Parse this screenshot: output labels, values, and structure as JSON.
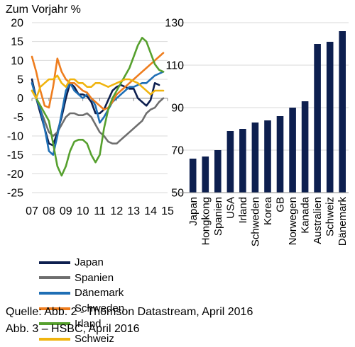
{
  "chart_data": [
    {
      "type": "line",
      "title": "Zum Vorjahr %",
      "xlabel": "",
      "ylabel": "",
      "ylim": [
        -25,
        20
      ],
      "yticks": [
        20,
        15,
        10,
        5,
        0,
        -5,
        -10,
        -15,
        -20,
        -25
      ],
      "xlim": [
        2007,
        2015
      ],
      "xticks": [
        "07",
        "08",
        "09",
        "10",
        "11",
        "12",
        "13",
        "14",
        "15"
      ],
      "grid": "horizontal",
      "legend_position": "below",
      "series": [
        {
          "name": "Japan",
          "color": "#0d1f4f",
          "x": [
            2007.0,
            2007.25,
            2007.5,
            2007.75,
            2008.0,
            2008.25,
            2008.5,
            2008.75,
            2009.0,
            2009.25,
            2009.5,
            2009.75,
            2010.0,
            2010.25,
            2010.5,
            2010.75,
            2011.0,
            2011.25,
            2011.5,
            2011.75,
            2012.0,
            2012.25,
            2012.5,
            2012.75,
            2013.0,
            2013.25,
            2013.5,
            2013.75,
            2014.0,
            2014.25,
            2014.5
          ],
          "y": [
            5,
            0,
            -4,
            -8,
            -12,
            -12.5,
            -9,
            -5,
            0,
            4,
            3,
            1,
            1,
            0.5,
            -1,
            -4,
            -4,
            -3,
            -0.5,
            2,
            3,
            3.5,
            3,
            2.5,
            2.5,
            0,
            -1,
            -2,
            -0.5,
            4,
            3.5
          ]
        },
        {
          "name": "Spanien",
          "color": "#6e6e6e",
          "x": [
            2007.0,
            2007.25,
            2007.5,
            2007.75,
            2008.0,
            2008.25,
            2008.5,
            2008.75,
            2009.0,
            2009.25,
            2009.5,
            2009.75,
            2010.0,
            2010.25,
            2010.5,
            2010.75,
            2011.0,
            2011.25,
            2011.5,
            2011.75,
            2012.0,
            2012.25,
            2012.5,
            2012.75,
            2013.0,
            2013.25,
            2013.5,
            2013.75,
            2014.0,
            2014.25,
            2014.5,
            2014.75
          ],
          "y": [
            4,
            0,
            -3,
            -6,
            -9,
            -10,
            -9,
            -7,
            -5,
            -4,
            -4,
            -4.5,
            -4.5,
            -4,
            -5,
            -7,
            -9,
            -10,
            -11.5,
            -12,
            -12,
            -11,
            -10,
            -9,
            -8,
            -7,
            -6,
            -4,
            -3,
            -2.5,
            -1,
            0
          ]
        },
        {
          "name": "Dänemark",
          "color": "#1f6fb5",
          "x": [
            2007.0,
            2007.25,
            2007.5,
            2007.75,
            2008.0,
            2008.25,
            2008.5,
            2008.75,
            2009.0,
            2009.25,
            2009.5,
            2009.75,
            2010.0,
            2010.25,
            2010.5,
            2010.75,
            2011.0,
            2011.25,
            2011.5,
            2011.75,
            2012.0,
            2012.25,
            2012.5,
            2012.75,
            2013.0,
            2013.25,
            2013.5,
            2013.75,
            2014.0,
            2014.25,
            2014.5,
            2014.75
          ],
          "y": [
            4,
            0,
            -3,
            -8,
            -14,
            -15,
            -10,
            -4,
            2,
            4,
            2,
            1,
            0,
            1,
            0,
            -2,
            -6.5,
            -5,
            -3,
            -1,
            0,
            1,
            2,
            3,
            3,
            3.5,
            4,
            4,
            5,
            6,
            6.5,
            7
          ]
        },
        {
          "name": "Schweden",
          "color": "#ee7d1e",
          "x": [
            2007.0,
            2007.25,
            2007.5,
            2007.75,
            2008.0,
            2008.25,
            2008.5,
            2008.75,
            2009.0,
            2009.25,
            2009.5,
            2009.75,
            2010.0,
            2010.25,
            2010.5,
            2010.75,
            2011.0,
            2011.25,
            2011.5,
            2011.75,
            2012.0,
            2012.25,
            2012.5,
            2012.75,
            2013.0,
            2013.25,
            2013.5,
            2013.75,
            2014.0,
            2014.25,
            2014.5,
            2014.75
          ],
          "y": [
            11,
            7,
            2,
            -2,
            -2.5,
            3,
            10.5,
            7,
            5,
            4,
            4,
            3,
            2,
            1.5,
            0,
            -1,
            -2,
            -3,
            -2.5,
            -1,
            1,
            2,
            3,
            4,
            5,
            6,
            7,
            8,
            9,
            10,
            11,
            12
          ]
        },
        {
          "name": "Irland",
          "color": "#56a02e",
          "x": [
            2007.0,
            2007.25,
            2007.5,
            2007.75,
            2008.0,
            2008.25,
            2008.5,
            2008.75,
            2009.0,
            2009.25,
            2009.5,
            2009.75,
            2010.0,
            2010.25,
            2010.5,
            2010.75,
            2011.0,
            2011.25,
            2011.5,
            2011.75,
            2012.0,
            2012.25,
            2012.5,
            2012.75,
            2013.0,
            2013.25,
            2013.5,
            2013.75,
            2014.0,
            2014.25,
            2014.5,
            2014.75
          ],
          "y": [
            2,
            0,
            -2,
            -4,
            -6,
            -12,
            -18,
            -20.5,
            -18,
            -14,
            -11.5,
            -11,
            -11,
            -12,
            -15,
            -17,
            -15,
            -8,
            -3,
            0,
            2,
            4,
            6,
            8,
            11,
            14,
            16,
            15,
            12,
            9,
            7.5,
            7
          ]
        },
        {
          "name": "Schweiz",
          "color": "#f0b40f",
          "x": [
            2007.0,
            2007.25,
            2007.5,
            2007.75,
            2008.0,
            2008.25,
            2008.5,
            2008.75,
            2009.0,
            2009.25,
            2009.5,
            2009.75,
            2010.0,
            2010.25,
            2010.5,
            2010.75,
            2011.0,
            2011.25,
            2011.5,
            2011.75,
            2012.0,
            2012.25,
            2012.5,
            2012.75,
            2013.0,
            2013.25,
            2013.5,
            2013.75,
            2014.0,
            2014.25,
            2014.5,
            2014.75
          ],
          "y": [
            2,
            0,
            3,
            4,
            5,
            5,
            6,
            4,
            3,
            5,
            5,
            4,
            4,
            3,
            3,
            4,
            4,
            3.5,
            3,
            3.5,
            4,
            4.5,
            5,
            5,
            4.5,
            4,
            3,
            2,
            1,
            2,
            2,
            2
          ]
        }
      ]
    },
    {
      "type": "bar",
      "title": "",
      "xlabel": "",
      "ylabel": "",
      "ylim": [
        50,
        130
      ],
      "yticks": [
        130,
        110,
        90,
        70,
        50
      ],
      "grid": "horizontal",
      "axis_position": "right",
      "bar_color": "#0d1f4f",
      "categories": [
        "Japan",
        "Hongkong",
        "Spanien",
        "USA",
        "Irland",
        "Schweden",
        "Korea",
        "GB",
        "Norwegen",
        "Kanada",
        "Australien",
        "Schweiz",
        "Dänemark"
      ],
      "values": [
        66,
        67,
        70,
        79,
        80,
        83,
        84,
        86,
        90,
        93,
        120,
        121,
        126
      ]
    }
  ],
  "sources": {
    "line1": "Quelle:  Abb. 2    - Thomson Datastream, April 2016",
    "line2": "Abb. 3    – HSBC, April 2016"
  }
}
